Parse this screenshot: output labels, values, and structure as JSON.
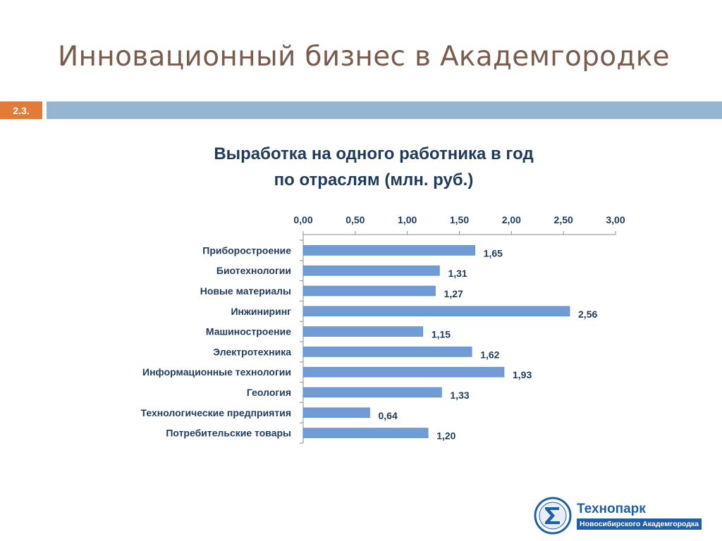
{
  "slide": {
    "title": "Инновационный бизнес в Академгородке",
    "section_number": "2.3."
  },
  "chart_data": {
    "type": "bar",
    "orientation": "horizontal",
    "title_line1": "Выработка на одного работника в год",
    "title_line2": "по отраслям (млн. руб.)",
    "categories": [
      "Приборостроение",
      "Биотехнологии",
      "Новые материалы",
      "Инжиниринг",
      "Машиностроение",
      "Электротехника",
      "Информационные технологии",
      "Геология",
      "Технологические предприятия",
      "Потребительские товары"
    ],
    "values": [
      1.65,
      1.31,
      1.27,
      2.56,
      1.15,
      1.62,
      1.93,
      1.33,
      0.64,
      1.2
    ],
    "value_labels": [
      "1,65",
      "1,31",
      "1,27",
      "2,56",
      "1,15",
      "1,62",
      "1,93",
      "1,33",
      "0,64",
      "1,20"
    ],
    "x_ticks": [
      0,
      0.5,
      1,
      1.5,
      2,
      2.5,
      3
    ],
    "x_tick_labels": [
      "0,00",
      "0,50",
      "1,00",
      "1,50",
      "2,00",
      "2,50",
      "3,00"
    ],
    "xlim": [
      0,
      3
    ],
    "x_axis_position": "top",
    "grid": false,
    "legend": "none",
    "bar_color": "#6f9bd6"
  },
  "logo": {
    "name": "Технопарк",
    "subtitle": "Новосибирского Академгородка",
    "icon": "technopark-logo-icon"
  }
}
